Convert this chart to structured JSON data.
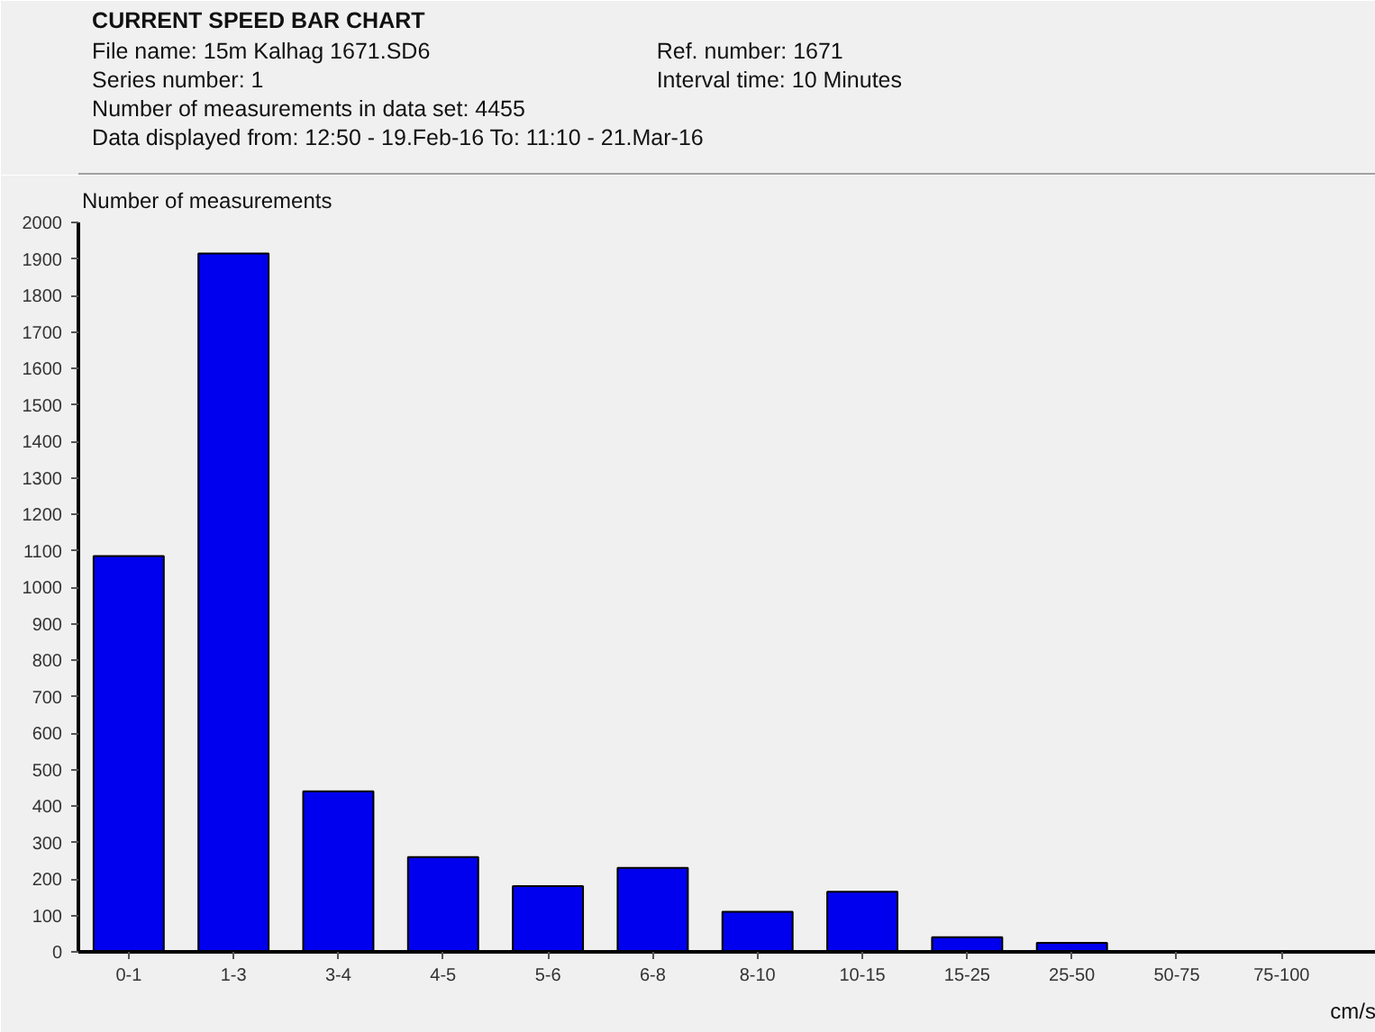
{
  "chart_data": {
    "type": "bar",
    "title": "CURRENT SPEED BAR CHART",
    "annotations": [
      "File name: 15m Kalhag 1671.SD6",
      "Ref. number: 1671",
      "Series number: 1",
      "Interval time: 10 Minutes",
      "Number of measurements in data set: 4455",
      "Data displayed from: 12:50 - 19.Feb-16   To: 11:10 - 21.Mar-16"
    ],
    "ylabel": "Number of measurements",
    "xlabel": "cm/s",
    "categories": [
      "0-1",
      "1-3",
      "3-4",
      "4-5",
      "5-6",
      "6-8",
      "8-10",
      "10-15",
      "15-25",
      "25-50",
      "50-75",
      "75-100"
    ],
    "values": [
      1085,
      1915,
      440,
      260,
      180,
      230,
      110,
      165,
      40,
      25,
      0,
      0
    ],
    "color": "#0000ee",
    "ylim": [
      0,
      2000
    ],
    "yticks": [
      0,
      100,
      200,
      300,
      400,
      500,
      600,
      700,
      800,
      900,
      1000,
      1100,
      1200,
      1300,
      1400,
      1500,
      1600,
      1700,
      1800,
      1900,
      2000
    ],
    "grid": false
  }
}
